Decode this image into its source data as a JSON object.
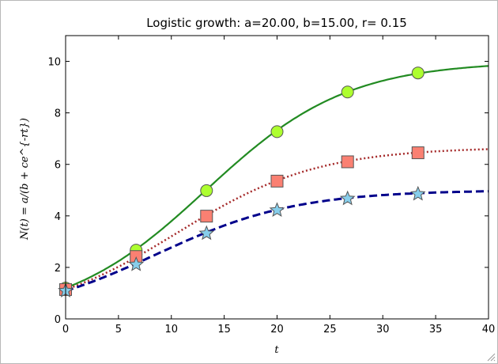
{
  "chart_data": {
    "type": "line",
    "title": "Logistic growth: a=20.00, b=15.00, r= 0.15",
    "xlabel": "t",
    "ylabel": "N(t) = a/(b + ce^{-rt})",
    "xlim": [
      0,
      40
    ],
    "ylim": [
      0,
      11
    ],
    "xticks": [
      "0",
      "5",
      "10",
      "15",
      "20",
      "25",
      "30",
      "35",
      "40"
    ],
    "yticks": [
      "0",
      "2",
      "4",
      "6",
      "8",
      "10"
    ],
    "grid": false,
    "series": [
      {
        "style": "solid",
        "color": "#228B22",
        "marker": "circle",
        "marker_color": "#ADFF2F",
        "x": [
          0,
          6.67,
          13.33,
          20,
          26.67,
          33.33
        ],
        "values": [
          1.2,
          2.67,
          4.98,
          7.27,
          8.81,
          9.55
        ],
        "curve": {
          "a": 10,
          "b": 1,
          "c": 7.33,
          "r": 0.15
        }
      },
      {
        "style": "dotted",
        "color": "#A52A2A",
        "marker": "square",
        "marker_color": "#FA8072",
        "x": [
          0,
          6.67,
          13.33,
          20,
          26.67,
          33.33
        ],
        "values": [
          1.14,
          2.42,
          3.99,
          5.35,
          6.1,
          6.45
        ],
        "curve": {
          "a": 6.67,
          "b": 1,
          "c": 4.85,
          "r": 0.15
        }
      },
      {
        "style": "dashed",
        "color": "#00008B",
        "marker": "star",
        "marker_color": "#87CEEB",
        "x": [
          0,
          6.67,
          13.33,
          20,
          26.67,
          33.33
        ],
        "values": [
          1.09,
          2.11,
          3.32,
          4.22,
          4.67,
          4.85
        ],
        "curve": {
          "a": 5,
          "b": 1,
          "c": 3.6,
          "r": 0.15
        }
      }
    ]
  }
}
